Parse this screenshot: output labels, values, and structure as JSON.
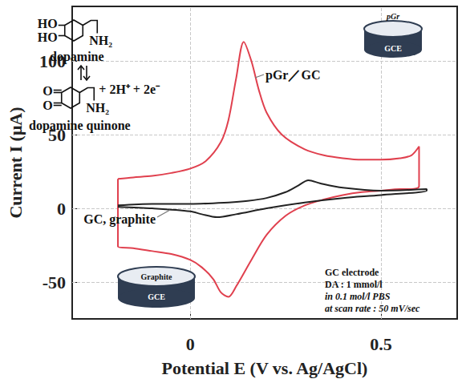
{
  "chart_data": {
    "type": "line",
    "xlabel": "Potential E (V vs. Ag/AgCl)",
    "ylabel": "Current I (μA)",
    "xlim": [
      -0.31,
      0.7
    ],
    "ylim": [
      -75,
      137
    ],
    "xticks": [
      0,
      0.5
    ],
    "yticks": [
      -50,
      0,
      50,
      100
    ],
    "grid": true,
    "series": [
      {
        "name": "pGr／GC",
        "color": "#e0404e",
        "x": [
          -0.19,
          -0.15,
          -0.1,
          -0.05,
          0,
          0.04,
          0.08,
          0.1,
          0.12,
          0.14,
          0.16,
          0.18,
          0.2,
          0.24,
          0.3,
          0.35,
          0.4,
          0.45,
          0.5,
          0.55,
          0.58,
          0.6,
          0.6,
          0.58,
          0.55,
          0.5,
          0.45,
          0.4,
          0.35,
          0.3,
          0.25,
          0.2,
          0.16,
          0.12,
          0.1,
          0.08,
          0.06,
          0.03,
          0,
          -0.05,
          -0.1,
          -0.15,
          -0.19,
          -0.19
        ],
        "values": [
          20,
          21,
          22,
          24,
          27,
          32,
          45,
          60,
          88,
          113,
          100,
          80,
          65,
          50,
          40,
          36,
          34,
          33,
          33,
          34,
          36,
          42,
          15,
          13,
          13,
          12,
          11,
          9,
          6,
          2,
          -5,
          -18,
          -35,
          -53,
          -60,
          -57,
          -48,
          -40,
          -35,
          -31,
          -29,
          -27,
          -26,
          20
        ]
      },
      {
        "name": "GC, graphite",
        "color": "#222222",
        "x": [
          -0.19,
          -0.1,
          0,
          0.1,
          0.15,
          0.2,
          0.25,
          0.28,
          0.31,
          0.34,
          0.4,
          0.5,
          0.62,
          0.62,
          0.5,
          0.4,
          0.3,
          0.2,
          0.12,
          0.07,
          0.03,
          0,
          -0.1,
          -0.19
        ],
        "values": [
          2,
          3,
          3,
          4,
          5,
          7,
          11,
          15,
          19,
          17,
          14,
          12,
          13,
          12,
          9,
          7,
          4,
          0,
          -4,
          -6,
          -4,
          -2,
          0,
          1
        ]
      }
    ],
    "annotations": {
      "reaction": {
        "reactant": {
          "groups": [
            "HO",
            "HO",
            "NH₂"
          ],
          "name": "dopamine"
        },
        "product": {
          "groups": [
            "O",
            "O",
            "NH₂"
          ],
          "name": "dopamine quinone"
        },
        "byproducts": "+ 2H⁺ + 2e⁻"
      },
      "insets": [
        {
          "labels": [
            "pGr",
            "GCE"
          ]
        },
        {
          "labels": [
            "Graphite",
            "GCE"
          ]
        }
      ],
      "conditions": [
        "GC electrode",
        "DA : 1 mmol/l",
        "in 0.1 mol/l PBS",
        "at scan rate : 50 mV/sec"
      ]
    }
  }
}
